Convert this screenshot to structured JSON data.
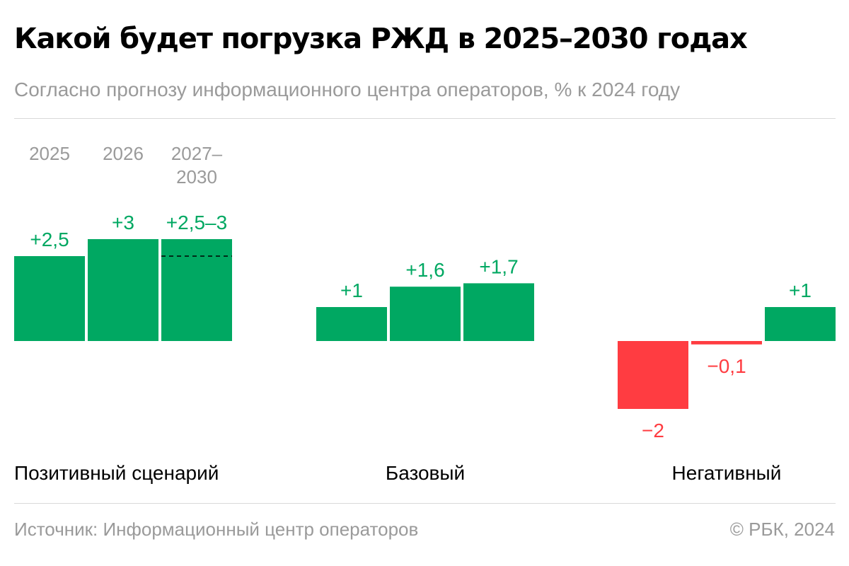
{
  "title": "Какой будет погрузка РЖД в 2025–2030 годах",
  "subtitle": "Согласно прогнозу информационного центра операторов, % к 2024 году",
  "source": "Источник: Информационный центр операторов",
  "copyright": "© РБК, 2024",
  "colors": {
    "positive": "#00a862",
    "negative": "#ff3c41",
    "axis_text": "#9a9a9a"
  },
  "chart_data": {
    "type": "bar",
    "categories": [
      "2025",
      "2026",
      "2027–2030"
    ],
    "category_labels": [
      [
        "2025"
      ],
      [
        "2026"
      ],
      [
        "2027–",
        "2030"
      ]
    ],
    "groups": [
      {
        "name": "Позитивный сценарий",
        "values": [
          2.5,
          3,
          3
        ],
        "labels": [
          "+2,5",
          "+3",
          "+2,5–3"
        ],
        "range_low": [
          null,
          null,
          2.5
        ]
      },
      {
        "name": "Базовый",
        "values": [
          1,
          1.6,
          1.7
        ],
        "labels": [
          "+1",
          "+1,6",
          "+1,7"
        ]
      },
      {
        "name": "Негативный",
        "values": [
          -2,
          -0.1,
          1
        ],
        "labels": [
          "−2",
          "−0,1",
          "+1"
        ]
      }
    ]
  }
}
